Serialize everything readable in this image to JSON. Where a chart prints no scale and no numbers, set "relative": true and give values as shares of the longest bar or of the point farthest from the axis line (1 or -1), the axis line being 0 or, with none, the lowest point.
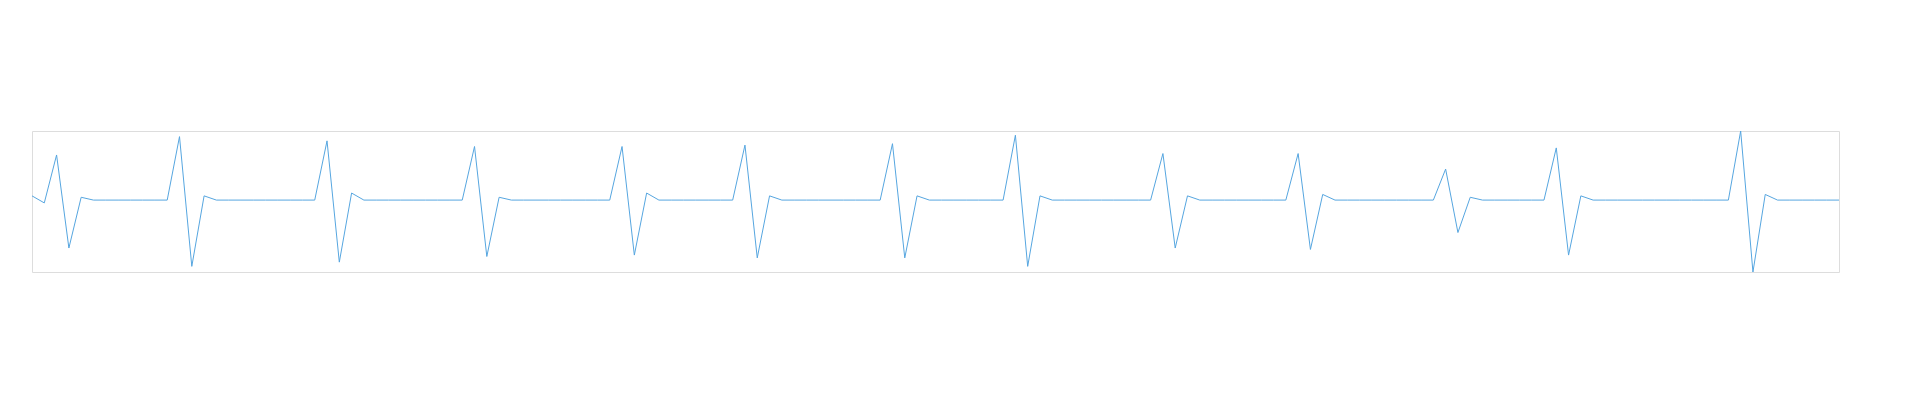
{
  "chart_data": {
    "type": "line",
    "relative": true,
    "categories": [
      null,
      null,
      null,
      null,
      null,
      null,
      null,
      null,
      null,
      null,
      null,
      null,
      null,
      null,
      null,
      null,
      null,
      null,
      null,
      null,
      null,
      null,
      null,
      null,
      null,
      null,
      null,
      null,
      null,
      null,
      null,
      null,
      null,
      null,
      null,
      null,
      null,
      null,
      null,
      null,
      null,
      null,
      null,
      null,
      null,
      null,
      null,
      null,
      null,
      null,
      null,
      null,
      null,
      null,
      null,
      null,
      null,
      null,
      null,
      null,
      null,
      null,
      null,
      null,
      null,
      null,
      null,
      null,
      null,
      null,
      null,
      null,
      null,
      null,
      null,
      null,
      null,
      null,
      null,
      null,
      null,
      null,
      null,
      null,
      null,
      null,
      null,
      null,
      null,
      null,
      null,
      null,
      null,
      null,
      null,
      null,
      null,
      null,
      null,
      null,
      null,
      null,
      null,
      null,
      null,
      null,
      null,
      null,
      null,
      null,
      null,
      null,
      null,
      null,
      null,
      null,
      null,
      null,
      null,
      null,
      null,
      null,
      null,
      null,
      null,
      null,
      null,
      null,
      null,
      null,
      null,
      null,
      null,
      null,
      null,
      null,
      null,
      null,
      null,
      null,
      null,
      null,
      null,
      null,
      null,
      null,
      null,
      null
    ],
    "series": [
      {
        "color": "#56a6e0",
        "values": [
          0.54,
          0.49,
          0.83,
          0.17,
          0.53,
          0.51,
          0.51,
          0.51,
          0.51,
          0.51,
          0.51,
          0.51,
          0.96,
          0.04,
          0.54,
          0.51,
          0.51,
          0.51,
          0.51,
          0.51,
          0.51,
          0.51,
          0.51,
          0.51,
          0.93,
          0.07,
          0.56,
          0.51,
          0.51,
          0.51,
          0.51,
          0.51,
          0.51,
          0.51,
          0.51,
          0.51,
          0.89,
          0.11,
          0.53,
          0.51,
          0.51,
          0.51,
          0.51,
          0.51,
          0.51,
          0.51,
          0.51,
          0.51,
          0.89,
          0.12,
          0.56,
          0.51,
          0.51,
          0.51,
          0.51,
          0.51,
          0.51,
          0.51,
          0.9,
          0.1,
          0.54,
          0.51,
          0.51,
          0.51,
          0.51,
          0.51,
          0.51,
          0.51,
          0.51,
          0.51,
          0.91,
          0.1,
          0.54,
          0.51,
          0.51,
          0.51,
          0.51,
          0.51,
          0.51,
          0.51,
          0.97,
          0.04,
          0.54,
          0.51,
          0.51,
          0.51,
          0.51,
          0.51,
          0.51,
          0.51,
          0.51,
          0.51,
          0.84,
          0.17,
          0.54,
          0.51,
          0.51,
          0.51,
          0.51,
          0.51,
          0.51,
          0.51,
          0.51,
          0.84,
          0.16,
          0.55,
          0.51,
          0.51,
          0.51,
          0.51,
          0.51,
          0.51,
          0.51,
          0.51,
          0.51,
          0.73,
          0.28,
          0.53,
          0.51,
          0.51,
          0.51,
          0.51,
          0.51,
          0.51,
          0.88,
          0.12,
          0.54,
          0.51,
          0.51,
          0.51,
          0.51,
          0.51,
          0.51,
          0.51,
          0.51,
          0.51,
          0.51,
          0.51,
          0.51,
          1.0,
          0.0,
          0.55,
          0.51,
          0.51,
          0.51,
          0.51,
          0.51,
          0.51
        ]
      }
    ]
  }
}
